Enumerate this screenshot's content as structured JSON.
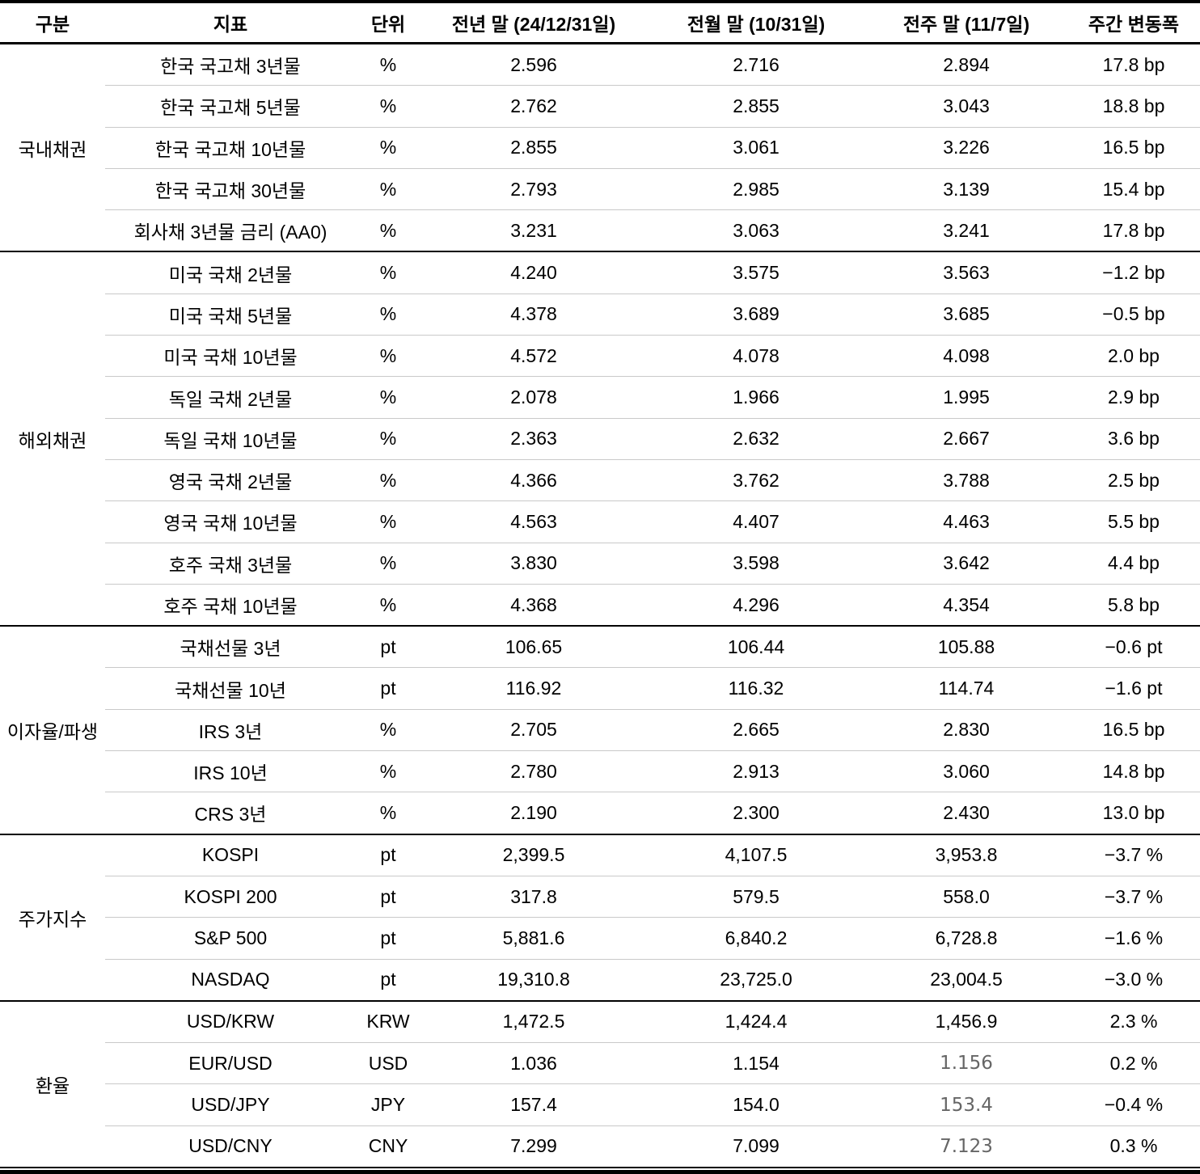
{
  "table": {
    "columns": [
      "구분",
      "지표",
      "단위",
      "전년 말 (24/12/31일)",
      "전월 말 (10/31일)",
      "전주 말 (11/7일)",
      "주간 변동폭"
    ],
    "groups": [
      {
        "label": "국내채권",
        "rows": [
          {
            "indicator": "한국 국고채 3년물",
            "unit": "%",
            "prev_year": "2.596",
            "prev_month": "2.716",
            "prev_week": "2.894",
            "weekly_change": "17.8 bp"
          },
          {
            "indicator": "한국 국고채 5년물",
            "unit": "%",
            "prev_year": "2.762",
            "prev_month": "2.855",
            "prev_week": "3.043",
            "weekly_change": "18.8 bp"
          },
          {
            "indicator": "한국 국고채 10년물",
            "unit": "%",
            "prev_year": "2.855",
            "prev_month": "3.061",
            "prev_week": "3.226",
            "weekly_change": "16.5 bp"
          },
          {
            "indicator": "한국 국고채 30년물",
            "unit": "%",
            "prev_year": "2.793",
            "prev_month": "2.985",
            "prev_week": "3.139",
            "weekly_change": "15.4 bp"
          },
          {
            "indicator": "회사채 3년물 금리 (AA0)",
            "unit": "%",
            "prev_year": "3.231",
            "prev_month": "3.063",
            "prev_week": "3.241",
            "weekly_change": "17.8 bp"
          }
        ]
      },
      {
        "label": "해외채권",
        "rows": [
          {
            "indicator": "미국 국채 2년물",
            "unit": "%",
            "prev_year": "4.240",
            "prev_month": "3.575",
            "prev_week": "3.563",
            "weekly_change": "−1.2 bp"
          },
          {
            "indicator": "미국 국채 5년물",
            "unit": "%",
            "prev_year": "4.378",
            "prev_month": "3.689",
            "prev_week": "3.685",
            "weekly_change": "−0.5 bp"
          },
          {
            "indicator": "미국 국채 10년물",
            "unit": "%",
            "prev_year": "4.572",
            "prev_month": "4.078",
            "prev_week": "4.098",
            "weekly_change": "2.0 bp"
          },
          {
            "indicator": "독일 국채 2년물",
            "unit": "%",
            "prev_year": "2.078",
            "prev_month": "1.966",
            "prev_week": "1.995",
            "weekly_change": "2.9 bp"
          },
          {
            "indicator": "독일 국채 10년물",
            "unit": "%",
            "prev_year": "2.363",
            "prev_month": "2.632",
            "prev_week": "2.667",
            "weekly_change": "3.6 bp"
          },
          {
            "indicator": "영국 국채 2년물",
            "unit": "%",
            "prev_year": "4.366",
            "prev_month": "3.762",
            "prev_week": "3.788",
            "weekly_change": "2.5 bp"
          },
          {
            "indicator": "영국 국채 10년물",
            "unit": "%",
            "prev_year": "4.563",
            "prev_month": "4.407",
            "prev_week": "4.463",
            "weekly_change": "5.5 bp"
          },
          {
            "indicator": "호주 국채 3년물",
            "unit": "%",
            "prev_year": "3.830",
            "prev_month": "3.598",
            "prev_week": "3.642",
            "weekly_change": "4.4 bp"
          },
          {
            "indicator": "호주 국채 10년물",
            "unit": "%",
            "prev_year": "4.368",
            "prev_month": "4.296",
            "prev_week": "4.354",
            "weekly_change": "5.8 bp"
          }
        ]
      },
      {
        "label": "이자율/파생",
        "rows": [
          {
            "indicator": "국채선물 3년",
            "unit": "pt",
            "prev_year": "106.65",
            "prev_month": "106.44",
            "prev_week": "105.88",
            "weekly_change": "−0.6 pt"
          },
          {
            "indicator": "국채선물 10년",
            "unit": "pt",
            "prev_year": "116.92",
            "prev_month": "116.32",
            "prev_week": "114.74",
            "weekly_change": "−1.6 pt"
          },
          {
            "indicator": "IRS 3년",
            "unit": "%",
            "prev_year": "2.705",
            "prev_month": "2.665",
            "prev_week": "2.830",
            "weekly_change": "16.5 bp"
          },
          {
            "indicator": "IRS 10년",
            "unit": "%",
            "prev_year": "2.780",
            "prev_month": "2.913",
            "prev_week": "3.060",
            "weekly_change": "14.8 bp"
          },
          {
            "indicator": "CRS 3년",
            "unit": "%",
            "prev_year": "2.190",
            "prev_month": "2.300",
            "prev_week": "2.430",
            "weekly_change": "13.0 bp"
          }
        ]
      },
      {
        "label": "주가지수",
        "rows": [
          {
            "indicator": "KOSPI",
            "unit": "pt",
            "prev_year": "2,399.5",
            "prev_month": "4,107.5",
            "prev_week": "3,953.8",
            "weekly_change": "−3.7 %"
          },
          {
            "indicator": "KOSPI 200",
            "unit": "pt",
            "prev_year": "317.8",
            "prev_month": "579.5",
            "prev_week": "558.0",
            "weekly_change": "−3.7 %"
          },
          {
            "indicator": "S&P 500",
            "unit": "pt",
            "prev_year": "5,881.6",
            "prev_month": "6,840.2",
            "prev_week": "6,728.8",
            "weekly_change": "−1.6 %"
          },
          {
            "indicator": "NASDAQ",
            "unit": "pt",
            "prev_year": "19,310.8",
            "prev_month": "23,725.0",
            "prev_week": "23,004.5",
            "weekly_change": "−3.0 %"
          }
        ]
      },
      {
        "label": "환율",
        "rows": [
          {
            "indicator": "USD/KRW",
            "unit": "KRW",
            "prev_year": "1,472.5",
            "prev_month": "1,424.4",
            "prev_week": "1,456.9",
            "weekly_change": "2.3 %"
          },
          {
            "indicator": "EUR/USD",
            "unit": "USD",
            "prev_year": "1.036",
            "prev_month": "1.154",
            "prev_week": "1.156",
            "prev_week_muted": true,
            "weekly_change": "0.2 %"
          },
          {
            "indicator": "USD/JPY",
            "unit": "JPY",
            "prev_year": "157.4",
            "prev_month": "154.0",
            "prev_week": "153.4",
            "prev_week_muted": true,
            "weekly_change": "−0.4 %"
          },
          {
            "indicator": "USD/CNY",
            "unit": "CNY",
            "prev_year": "7.299",
            "prev_month": "7.099",
            "prev_week": "7.123",
            "prev_week_muted": true,
            "weekly_change": "0.3 %"
          }
        ]
      }
    ]
  }
}
